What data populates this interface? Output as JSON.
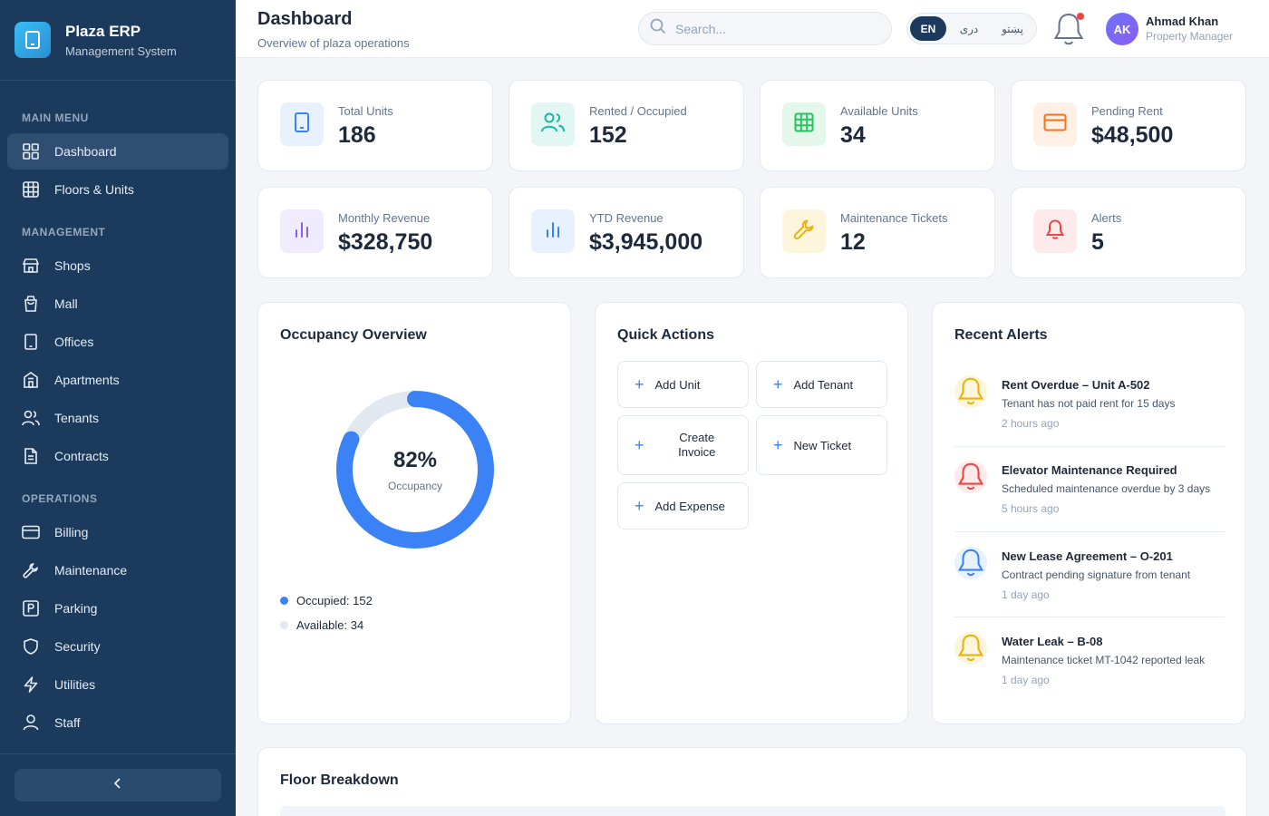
{
  "brand": {
    "title": "Plaza ERP",
    "subtitle": "Management System"
  },
  "sidebar": {
    "sections": {
      "main": "Main Menu",
      "management": "Management",
      "operations": "Operations"
    },
    "items": [
      {
        "label": "Dashboard",
        "icon": "grid-icon"
      },
      {
        "label": "Floors & Units",
        "icon": "table-grid-icon"
      },
      {
        "label": "Shops",
        "icon": "shop-icon"
      },
      {
        "label": "Mall",
        "icon": "shopping-bag-icon"
      },
      {
        "label": "Offices",
        "icon": "tablet-icon"
      },
      {
        "label": "Apartments",
        "icon": "building-icon"
      },
      {
        "label": "Tenants",
        "icon": "users-icon"
      },
      {
        "label": "Contracts",
        "icon": "document-icon"
      },
      {
        "label": "Billing",
        "icon": "credit-card-icon"
      },
      {
        "label": "Maintenance",
        "icon": "wrench-icon"
      },
      {
        "label": "Parking",
        "icon": "parking-icon"
      },
      {
        "label": "Security",
        "icon": "shield-icon"
      },
      {
        "label": "Utilities",
        "icon": "bolt-icon"
      },
      {
        "label": "Staff",
        "icon": "user-icon"
      }
    ],
    "active_item": "Dashboard"
  },
  "header": {
    "title": "Dashboard",
    "subtitle": "Overview of plaza operations",
    "search_placeholder": "Search...",
    "languages": [
      "EN",
      "دری",
      "پښتو"
    ],
    "active_language": "EN",
    "user": {
      "initials": "AK",
      "name": "Ahmad Khan",
      "role": "Property Manager"
    }
  },
  "stats": [
    {
      "label": "Total Units",
      "value": "186",
      "icon": "tablet-icon",
      "color": "#3b82f6",
      "bg": "#e8f1fe"
    },
    {
      "label": "Rented / Occupied",
      "value": "152",
      "icon": "users-icon",
      "color": "#14b8a6",
      "bg": "#e2f7f4"
    },
    {
      "label": "Available Units",
      "value": "34",
      "icon": "table-grid-icon",
      "color": "#22c55e",
      "bg": "#e3f7ea"
    },
    {
      "label": "Pending Rent",
      "value": "$48,500",
      "icon": "credit-card-icon",
      "color": "#f97316",
      "bg": "#fff0e6"
    },
    {
      "label": "Monthly Revenue",
      "value": "$328,750",
      "icon": "bar-chart-icon",
      "color": "#8b5cf6",
      "bg": "#f1ebfe"
    },
    {
      "label": "YTD Revenue",
      "value": "$3,945,000",
      "icon": "bar-chart-icon",
      "color": "#3b82f6",
      "bg": "#e8f1fe"
    },
    {
      "label": "Maintenance Tickets",
      "value": "12",
      "icon": "wrench-icon",
      "color": "#eab308",
      "bg": "#fdf5dc"
    },
    {
      "label": "Alerts",
      "value": "5",
      "icon": "bell-icon",
      "color": "#ef4444",
      "bg": "#fdeaea"
    }
  ],
  "occupancy": {
    "title": "Occupancy Overview",
    "percent_label": "82%",
    "center_label": "Occupancy",
    "occupied_fraction": 0.82,
    "legend": [
      {
        "label": "Occupied: 152",
        "color": "#3b82f6"
      },
      {
        "label": "Available: 34",
        "color": "#e2e8f0"
      }
    ]
  },
  "quick_actions": {
    "title": "Quick Actions",
    "buttons": [
      "Add Unit",
      "Add Tenant",
      "Create Invoice",
      "New Ticket",
      "Add Expense"
    ]
  },
  "alerts": {
    "title": "Recent Alerts",
    "items": [
      {
        "title": "Rent Overdue – Unit A-502",
        "desc": "Tenant has not paid rent for 15 days",
        "time": "2 hours ago",
        "color": "#eab308",
        "bg": "#fdf5dc"
      },
      {
        "title": "Elevator Maintenance Required",
        "desc": "Scheduled maintenance overdue by 3 days",
        "time": "5 hours ago",
        "color": "#ef4444",
        "bg": "#fdeaea"
      },
      {
        "title": "New Lease Agreement – O-201",
        "desc": "Contract pending signature from tenant",
        "time": "1 day ago",
        "color": "#3b82f6",
        "bg": "#e8f1fe"
      },
      {
        "title": "Water Leak – B-08",
        "desc": "Maintenance ticket MT-1042 reported leak",
        "time": "1 day ago",
        "color": "#eab308",
        "bg": "#fdf5dc"
      }
    ]
  },
  "floor_breakdown": {
    "title": "Floor Breakdown"
  }
}
